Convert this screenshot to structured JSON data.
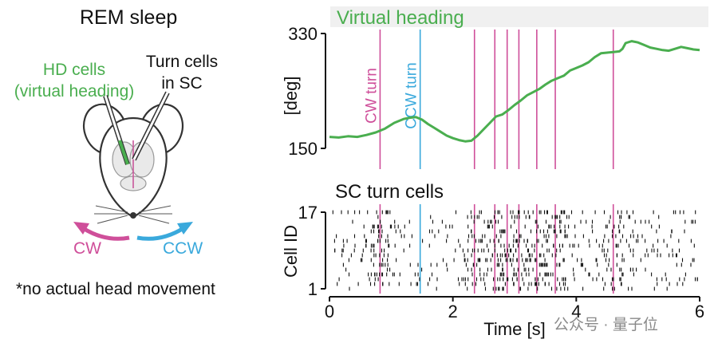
{
  "left_panel": {
    "title": "REM sleep",
    "hd_label_1": "HD cells",
    "hd_label_2": "(virtual heading)",
    "turn_label_1": "Turn cells",
    "turn_label_2": "in SC",
    "cw_label": "CW",
    "ccw_label": "CCW",
    "footnote": "*no actual head movement"
  },
  "watermark": "公众号 · 量子位",
  "colors": {
    "green": "#4aae4f",
    "pink": "#cf4f9a",
    "blue": "#3aa9dc",
    "black": "#111111"
  },
  "chart_data": [
    {
      "type": "line",
      "title": "Virtual heading",
      "ylabel": "[deg]",
      "yticks": [
        "330",
        "150"
      ],
      "ylim": [
        150,
        330
      ],
      "xlim": [
        0,
        6
      ],
      "series": [
        {
          "name": "Virtual heading",
          "x": [
            0,
            0.15,
            0.3,
            0.45,
            0.6,
            0.75,
            0.9,
            1.05,
            1.2,
            1.3,
            1.4,
            1.5,
            1.6,
            1.7,
            1.8,
            1.9,
            2.0,
            2.1,
            2.2,
            2.3,
            2.4,
            2.5,
            2.6,
            2.7,
            2.8,
            2.9,
            3.0,
            3.1,
            3.2,
            3.3,
            3.4,
            3.5,
            3.6,
            3.7,
            3.8,
            3.9,
            4.0,
            4.1,
            4.2,
            4.3,
            4.4,
            4.5,
            4.6,
            4.7,
            4.75,
            4.8,
            4.9,
            5.0,
            5.1,
            5.2,
            5.3,
            5.4,
            5.5,
            5.6,
            5.7,
            5.8,
            5.9,
            6.0
          ],
          "values": [
            168,
            167,
            169,
            168,
            171,
            175,
            181,
            190,
            196,
            198,
            199,
            195,
            188,
            182,
            176,
            170,
            166,
            163,
            161,
            162,
            170,
            180,
            190,
            200,
            203,
            210,
            218,
            225,
            233,
            238,
            243,
            250,
            256,
            260,
            264,
            272,
            276,
            280,
            285,
            293,
            299,
            300,
            301,
            302,
            306,
            315,
            318,
            316,
            312,
            308,
            306,
            304,
            303,
            306,
            309,
            307,
            305,
            304
          ]
        }
      ],
      "turn_events": [
        {
          "type": "CW",
          "t": 0.82,
          "label": "CW turn"
        },
        {
          "type": "CCW",
          "t": 1.47,
          "label": "CCW turn"
        },
        {
          "type": "CW",
          "t": 2.35,
          "label": ""
        },
        {
          "type": "CW",
          "t": 2.68,
          "label": ""
        },
        {
          "type": "CW",
          "t": 2.88,
          "label": ""
        },
        {
          "type": "CW",
          "t": 3.07,
          "label": ""
        },
        {
          "type": "CW",
          "t": 3.36,
          "label": ""
        },
        {
          "type": "CW",
          "t": 3.66,
          "label": ""
        },
        {
          "type": "CW",
          "t": 4.6,
          "label": ""
        }
      ]
    },
    {
      "type": "raster",
      "title": "SC turn cells",
      "ylabel": "Cell ID",
      "yticks": [
        "17",
        "1"
      ],
      "ylim": [
        1,
        17
      ],
      "xlabel": "Time [s]",
      "xticks": [
        "0",
        "2",
        "4",
        "6"
      ],
      "xlim": [
        0,
        6
      ],
      "n_cells": 17
    }
  ]
}
